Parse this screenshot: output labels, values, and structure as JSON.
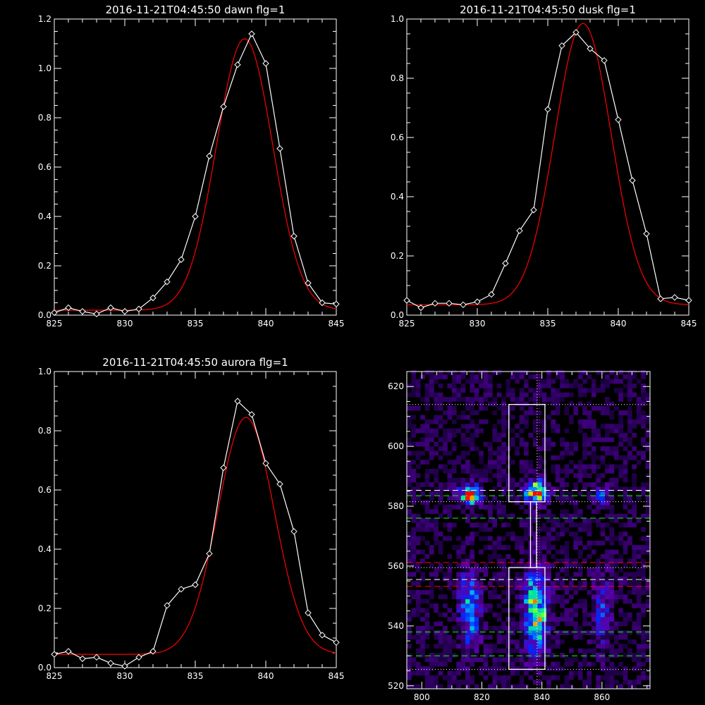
{
  "colors": {
    "background": "#000000",
    "data": "#ffffff",
    "fit": "#ff0000"
  },
  "chart_data": [
    {
      "type": "line",
      "title": "2016-11-21T04:45:50 dawn flg=1",
      "xlim": [
        825,
        845
      ],
      "ylim": [
        0,
        1.2
      ],
      "xticks": [
        "825",
        "830",
        "835",
        "840",
        "845"
      ],
      "yticks": [
        "0.0",
        "0.2",
        "0.4",
        "0.6",
        "0.8",
        "1.0",
        "1.2"
      ],
      "series": [
        {
          "role": "data",
          "marker": "diamond",
          "color": "#ffffff",
          "x": [
            825,
            826,
            827,
            828,
            829,
            830,
            831,
            832,
            833,
            834,
            835,
            836,
            837,
            838,
            839,
            840,
            841,
            842,
            843,
            844,
            845
          ],
          "y": [
            0.01,
            0.03,
            0.015,
            0.005,
            0.03,
            0.015,
            0.025,
            0.07,
            0.135,
            0.225,
            0.4,
            0.645,
            0.845,
            1.015,
            1.14,
            1.02,
            0.675,
            0.32,
            0.13,
            0.05,
            0.045
          ]
        },
        {
          "role": "fit",
          "color": "#ff0000",
          "gauss": {
            "amp": 1.1,
            "center": 838.5,
            "sigma": 2.0,
            "base": 0.02
          }
        }
      ]
    },
    {
      "type": "line",
      "title": "2016-11-21T04:45:50 dusk flg=1",
      "xlim": [
        825,
        845
      ],
      "ylim": [
        0,
        1.0
      ],
      "xticks": [
        "825",
        "830",
        "835",
        "840",
        "845"
      ],
      "yticks": [
        "0.0",
        "0.2",
        "0.4",
        "0.6",
        "0.8",
        "1.0"
      ],
      "series": [
        {
          "role": "data",
          "marker": "diamond",
          "color": "#ffffff",
          "x": [
            825,
            826,
            827,
            828,
            829,
            830,
            831,
            832,
            833,
            834,
            835,
            836,
            837,
            838,
            839,
            840,
            841,
            842,
            843,
            844,
            845
          ],
          "y": [
            0.05,
            0.025,
            0.04,
            0.04,
            0.035,
            0.045,
            0.07,
            0.175,
            0.285,
            0.355,
            0.695,
            0.91,
            0.955,
            0.9,
            0.86,
            0.66,
            0.455,
            0.275,
            0.055,
            0.06,
            0.05
          ]
        },
        {
          "role": "fit",
          "color": "#ff0000",
          "gauss": {
            "amp": 0.95,
            "center": 837.5,
            "sigma": 2.0,
            "base": 0.035
          }
        }
      ]
    },
    {
      "type": "line",
      "title": "2016-11-21T04:45:50 aurora flg=1",
      "xlim": [
        825,
        845
      ],
      "ylim": [
        0,
        1.0
      ],
      "xticks": [
        "825",
        "830",
        "835",
        "840",
        "845"
      ],
      "yticks": [
        "0.0",
        "0.2",
        "0.4",
        "0.6",
        "0.8",
        "1.0"
      ],
      "series": [
        {
          "role": "data",
          "marker": "diamond",
          "color": "#ffffff",
          "x": [
            825,
            826,
            827,
            828,
            829,
            830,
            831,
            832,
            833,
            834,
            835,
            836,
            837,
            838,
            839,
            840,
            841,
            842,
            843,
            844,
            845
          ],
          "y": [
            0.045,
            0.055,
            0.03,
            0.035,
            0.015,
            0.005,
            0.035,
            0.055,
            0.21,
            0.265,
            0.28,
            0.385,
            0.675,
            0.9,
            0.855,
            0.69,
            0.62,
            0.46,
            0.185,
            0.11,
            0.085
          ]
        },
        {
          "role": "fit",
          "color": "#ff0000",
          "gauss": {
            "amp": 0.8,
            "center": 838.6,
            "sigma": 2.0,
            "base": 0.045
          }
        }
      ]
    },
    {
      "type": "heatmap",
      "title": "",
      "xlim": [
        795,
        876
      ],
      "ylim": [
        519,
        625
      ],
      "xticks": [
        {
          "v": 800,
          "label": "800"
        },
        {
          "v": 820,
          "label": "820"
        },
        {
          "v": 840,
          "label": "840"
        },
        {
          "v": 860,
          "label": "860"
        }
      ],
      "yticks": [
        {
          "v": 520,
          "label": "520"
        },
        {
          "v": 540,
          "label": "540"
        },
        {
          "v": 560,
          "label": "560"
        },
        {
          "v": 580,
          "label": "580"
        },
        {
          "v": 600,
          "label": "600"
        },
        {
          "v": 620,
          "label": "620"
        }
      ],
      "colormap": "rainbow",
      "blobs": [
        {
          "x": 816,
          "y": 584,
          "sx": 2.4,
          "sy": 2.3,
          "amp": 0.95
        },
        {
          "x": 838,
          "y": 585,
          "sx": 2.6,
          "sy": 2.6,
          "amp": 1.0
        },
        {
          "x": 860,
          "y": 584,
          "sx": 2.2,
          "sy": 2.4,
          "amp": 0.35
        },
        {
          "x": 816,
          "y": 545,
          "sx": 2.4,
          "sy": 9,
          "amp": 0.55
        },
        {
          "x": 838,
          "y": 545,
          "sx": 2.8,
          "sy": 9.5,
          "amp": 0.8
        },
        {
          "x": 860,
          "y": 545,
          "sx": 2.4,
          "sy": 9,
          "amp": 0.3
        }
      ],
      "boxes": [
        {
          "x0": 829,
          "x1": 841,
          "y0": 581.5,
          "y1": 614
        },
        {
          "x0": 829,
          "x1": 841,
          "y0": 525.5,
          "y1": 559.5
        }
      ],
      "connector": {
        "x0": 836.2,
        "x1": 838.2,
        "y0": 559.5,
        "y1": 581.5
      },
      "hlines": [
        {
          "y": 614.0,
          "style": "dotted",
          "color": "#ffffff"
        },
        {
          "y": 585.3,
          "style": "dashed",
          "color": "#ffffff"
        },
        {
          "y": 583.5,
          "style": "dashed",
          "color": "#00ff00"
        },
        {
          "y": 581.5,
          "style": "dotted",
          "color": "#ffffff"
        },
        {
          "y": 576.0,
          "style": "dashed",
          "color": "#00ff00"
        },
        {
          "y": 561.2,
          "style": "dashed",
          "color": "#ff0000"
        },
        {
          "y": 559.5,
          "style": "dotted",
          "color": "#ffffff"
        },
        {
          "y": 555.5,
          "style": "dashed",
          "color": "#ffffff"
        },
        {
          "y": 553.2,
          "style": "dashed",
          "color": "#ff0000"
        },
        {
          "y": 538.0,
          "style": "dashed",
          "color": "#00ff00"
        },
        {
          "y": 530.0,
          "style": "dashed",
          "color": "#00ff00"
        },
        {
          "y": 525.5,
          "style": "dotted",
          "color": "#ffffff"
        }
      ],
      "vlines": [
        {
          "x": 838.4,
          "style": "dotted",
          "color": "#ffffff"
        },
        {
          "x": 839.2,
          "style": "dotted",
          "color": "#ff00ff"
        }
      ]
    }
  ]
}
